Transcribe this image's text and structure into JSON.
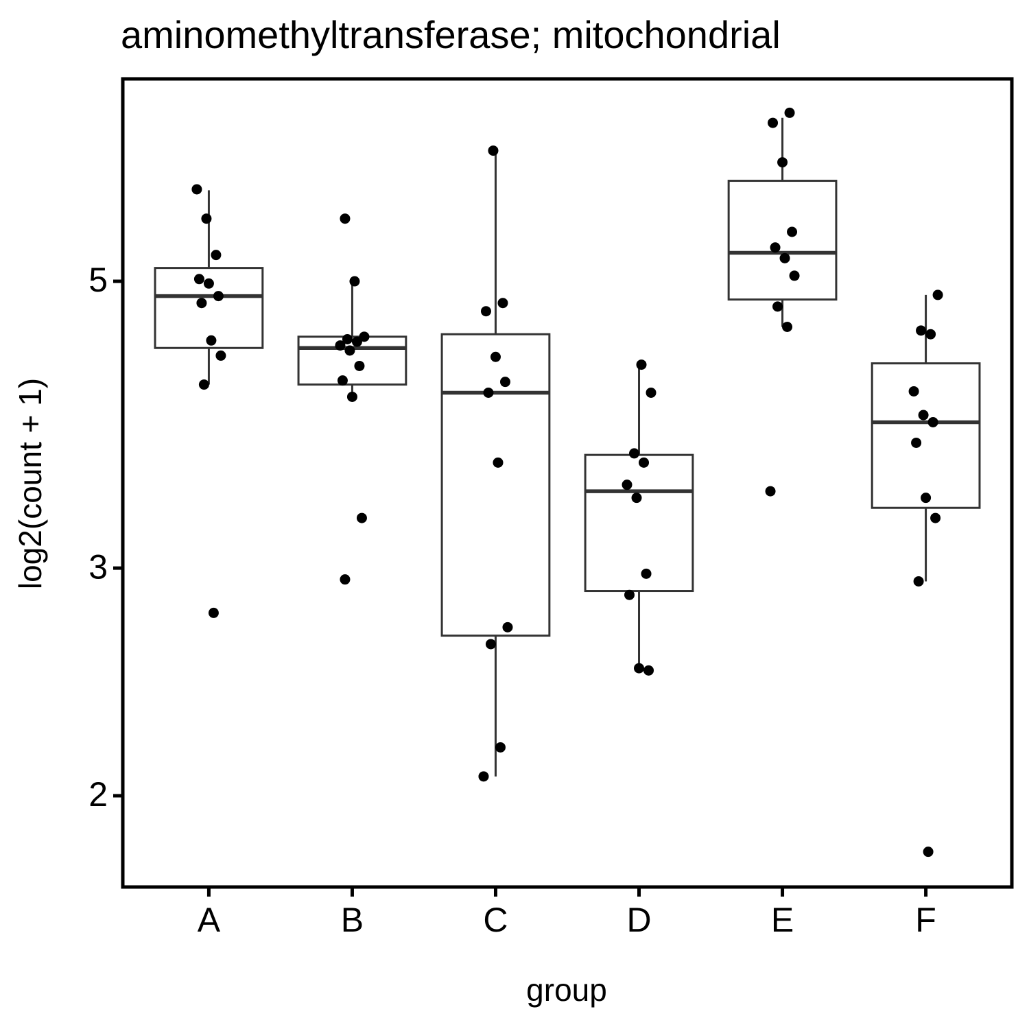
{
  "chart_data": {
    "type": "box",
    "title": "aminomethyltransferase; mitochondrial",
    "x_label": "group",
    "y_label": "log2(count + 1)",
    "categories": [
      "A",
      "B",
      "C",
      "D",
      "E",
      "F"
    ],
    "boxes": [
      {
        "min": 4.16,
        "q1": 4.44,
        "median": 4.87,
        "q3": 5.12,
        "max": 5.88
      },
      {
        "min": 4.07,
        "q1": 4.16,
        "median": 4.44,
        "q3": 4.53,
        "max": 5.01
      },
      {
        "min": 2.07,
        "q1": 2.66,
        "median": 4.1,
        "q3": 4.55,
        "max": 6.31
      },
      {
        "min": 2.51,
        "q1": 2.88,
        "median": 3.44,
        "q3": 3.67,
        "max": 4.31
      },
      {
        "min": 4.61,
        "q1": 4.84,
        "median": 5.26,
        "q3": 5.98,
        "max": 6.69
      },
      {
        "min": 2.93,
        "q1": 3.34,
        "median": 3.89,
        "q3": 4.32,
        "max": 4.88
      }
    ],
    "points": [
      [
        5.89,
        5.59,
        5.24,
        5.02,
        4.98,
        4.87,
        4.81,
        4.5,
        4.38,
        4.16,
        2.77
      ],
      [
        5.59,
        5.0,
        4.53,
        4.51,
        4.49,
        4.46,
        4.42,
        4.3,
        4.19,
        4.07,
        3.28,
        2.94
      ],
      [
        6.31,
        4.81,
        4.74,
        4.37,
        4.18,
        4.1,
        3.62,
        2.7,
        2.62,
        2.18,
        2.07
      ],
      [
        4.31,
        4.1,
        3.68,
        3.62,
        3.48,
        3.4,
        2.97,
        2.86,
        2.51,
        2.5
      ],
      [
        6.75,
        6.63,
        6.18,
        5.46,
        5.31,
        5.21,
        5.05,
        4.78,
        4.61,
        3.44
      ],
      [
        4.88,
        4.58,
        4.55,
        4.11,
        3.94,
        3.89,
        3.75,
        3.4,
        3.28,
        2.93,
        1.81
      ]
    ],
    "box_color": "#333333",
    "point_color": "#000000",
    "log_y": true,
    "ylim": [
      1.7,
      7.17
    ],
    "yticks": [
      2,
      3,
      5
    ]
  }
}
